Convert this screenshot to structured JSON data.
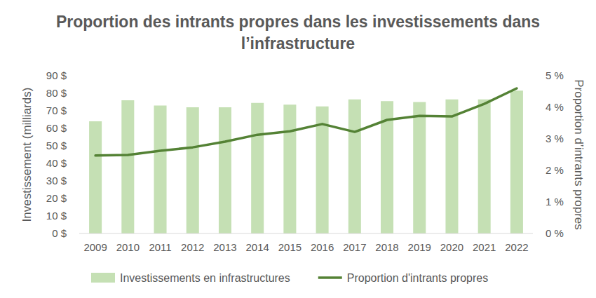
{
  "chart_data": {
    "type": "bar",
    "title": "Proportion des intrants propres dans les investissements dans l’infrastructure",
    "y_label": "Investissement (milliards)",
    "y2_label": "Proportion d’intrants propres",
    "categories": [
      "2009",
      "2010",
      "2011",
      "2012",
      "2013",
      "2014",
      "2015",
      "2016",
      "2017",
      "2018",
      "2019",
      "2020",
      "2021",
      "2022"
    ],
    "series": [
      {
        "name": "Investissements en infrastructures",
        "type": "bar",
        "color": "#c5e0b4",
        "values": [
          64,
          76,
          73,
          72,
          72,
          74.5,
          73.5,
          72.5,
          76.5,
          75.5,
          75,
          76.5,
          76.5,
          81.5
        ]
      },
      {
        "name": "Proportion d'intrants propres",
        "type": "line",
        "axis": "y2",
        "color": "#548235",
        "values": [
          2.47,
          2.49,
          2.62,
          2.73,
          2.91,
          3.13,
          3.24,
          3.47,
          3.22,
          3.6,
          3.73,
          3.71,
          4.11,
          4.6
        ]
      }
    ],
    "ylim": [
      0,
      90
    ],
    "yticks": [
      {
        "value": 0,
        "label": "0 $"
      },
      {
        "value": 10,
        "label": "10 $"
      },
      {
        "value": 20,
        "label": "20 $"
      },
      {
        "value": 30,
        "label": "30 $"
      },
      {
        "value": 40,
        "label": "40 $"
      },
      {
        "value": 50,
        "label": "50 $"
      },
      {
        "value": 60,
        "label": "60 $"
      },
      {
        "value": 70,
        "label": "70 $"
      },
      {
        "value": 80,
        "label": "80 $"
      },
      {
        "value": 90,
        "label": "90 $"
      }
    ],
    "y2lim": [
      0,
      5
    ],
    "y2ticks": [
      {
        "value": 0,
        "label": "0 %"
      },
      {
        "value": 1,
        "label": "1 %"
      },
      {
        "value": 2,
        "label": "2 %"
      },
      {
        "value": 3,
        "label": "3 %"
      },
      {
        "value": 4,
        "label": "4 %"
      },
      {
        "value": 5,
        "label": "5 %"
      }
    ],
    "grid": false,
    "legend": "bottom"
  }
}
